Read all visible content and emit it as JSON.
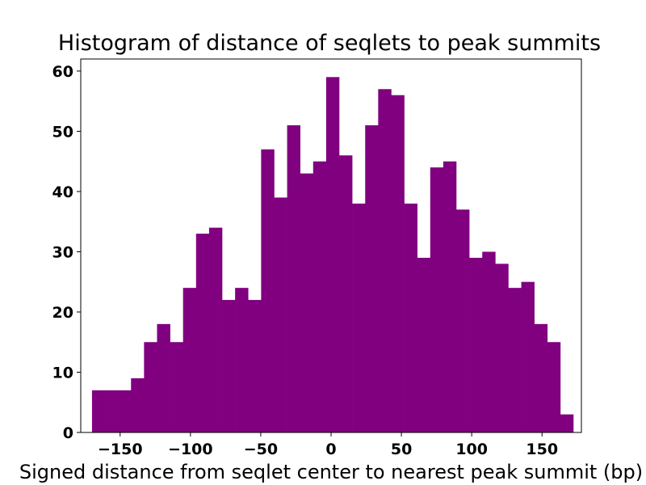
{
  "chart_data": {
    "type": "bar",
    "title": "Histogram of distance of seqlets to peak summits",
    "xlabel": "Signed distance from seqlet center to nearest peak summit (bp)",
    "ylabel": "",
    "xlim": [
      -178,
      178
    ],
    "ylim": [
      0,
      62
    ],
    "grid": false,
    "bar_color": "#800080",
    "bin_width": 9.25,
    "bin_edges_start": -170,
    "x_ticks": [
      -150,
      -100,
      -50,
      0,
      50,
      100,
      150
    ],
    "x_tick_labels": [
      "−150",
      "−100",
      "−50",
      "0",
      "50",
      "100",
      "150"
    ],
    "y_ticks": [
      0,
      10,
      20,
      30,
      40,
      50,
      60
    ],
    "y_tick_labels": [
      "0",
      "10",
      "20",
      "30",
      "40",
      "50",
      "60"
    ],
    "values": [
      7,
      7,
      7,
      9,
      15,
      18,
      15,
      24,
      33,
      34,
      22,
      24,
      22,
      47,
      39,
      51,
      43,
      45,
      59,
      46,
      38,
      51,
      57,
      56,
      38,
      29,
      44,
      45,
      37,
      29,
      30,
      28,
      24,
      25,
      18,
      15,
      3
    ]
  }
}
